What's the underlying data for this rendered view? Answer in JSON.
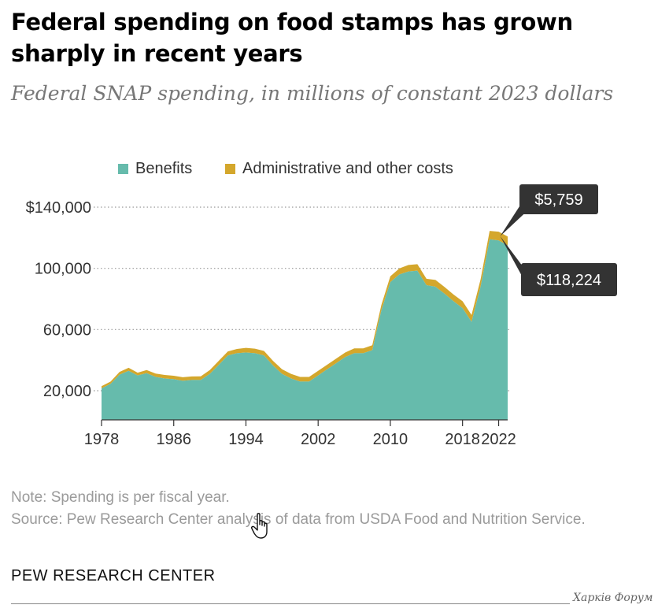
{
  "title": "Federal spending on food stamps has grown sharply in recent years",
  "subtitle": "Federal SNAP spending, in millions of constant 2023 dollars",
  "legend": {
    "benefits": "Benefits",
    "admin": "Administrative and other costs"
  },
  "colors": {
    "benefits": "#66bbac",
    "admin": "#d4a72c",
    "grid": "#999999",
    "callout_bg": "#333333"
  },
  "callouts": {
    "admin_label": "$5,759",
    "benefits_label": "$118,224"
  },
  "chart_data": {
    "type": "area",
    "stacked": true,
    "title": "Federal spending on food stamps has grown sharply in recent years",
    "subtitle": "Federal SNAP spending, in millions of constant 2023 dollars",
    "xlabel": "",
    "ylabel": "",
    "x_ticks": [
      1978,
      1986,
      1994,
      2002,
      2010,
      2018,
      2022
    ],
    "y_ticks": [
      {
        "value": 20000,
        "label": "20,000"
      },
      {
        "value": 60000,
        "label": "60,000"
      },
      {
        "value": 100000,
        "label": "100,000"
      },
      {
        "value": 140000,
        "label": "$140,000"
      }
    ],
    "ylim": [
      0,
      140000
    ],
    "xlim": [
      1978,
      2023
    ],
    "x": [
      1978,
      1979,
      1980,
      1981,
      1982,
      1983,
      1984,
      1985,
      1986,
      1987,
      1988,
      1989,
      1990,
      1991,
      1992,
      1993,
      1994,
      1995,
      1996,
      1997,
      1998,
      1999,
      2000,
      2001,
      2002,
      2003,
      2004,
      2005,
      2006,
      2007,
      2008,
      2009,
      2010,
      2011,
      2012,
      2013,
      2014,
      2015,
      2016,
      2017,
      2018,
      2019,
      2020,
      2021,
      2022,
      2023
    ],
    "series": [
      {
        "name": "Benefits",
        "values": [
          21500,
          24500,
          30500,
          33000,
          30000,
          31500,
          29000,
          28000,
          27500,
          26500,
          27000,
          27000,
          31000,
          37000,
          43000,
          44500,
          45000,
          44500,
          43000,
          36500,
          31000,
          28000,
          26000,
          26000,
          30000,
          34000,
          38000,
          42000,
          44500,
          44500,
          46500,
          72500,
          91000,
          96000,
          98000,
          98500,
          89000,
          88000,
          83500,
          78500,
          74000,
          65000,
          88000,
          119000,
          118224,
          115000
        ]
      },
      {
        "name": "Administrative and other costs",
        "values": [
          1500,
          1500,
          1800,
          2000,
          1800,
          2000,
          2200,
          2300,
          2300,
          2300,
          2300,
          2400,
          2500,
          2600,
          2700,
          2800,
          3000,
          3000,
          3000,
          3000,
          3000,
          3000,
          3000,
          3000,
          3000,
          3000,
          3000,
          3000,
          3200,
          3200,
          3200,
          3500,
          3800,
          4000,
          4200,
          4200,
          4200,
          4400,
          4400,
          4400,
          4500,
          4500,
          4800,
          5500,
          5759,
          5800
        ]
      }
    ],
    "annotations": [
      {
        "text": "$5,759",
        "refers_to": "Administrative and other costs",
        "year": 2022
      },
      {
        "text": "$118,224",
        "refers_to": "Benefits",
        "year": 2022
      }
    ]
  },
  "footer": {
    "note": "Note: Spending is per fiscal year.",
    "source": "Source: Pew Research Center analysis of data from USDA Food and Nutrition Service.",
    "brand": "PEW RESEARCH CENTER",
    "watermark": "Харків Форум"
  }
}
